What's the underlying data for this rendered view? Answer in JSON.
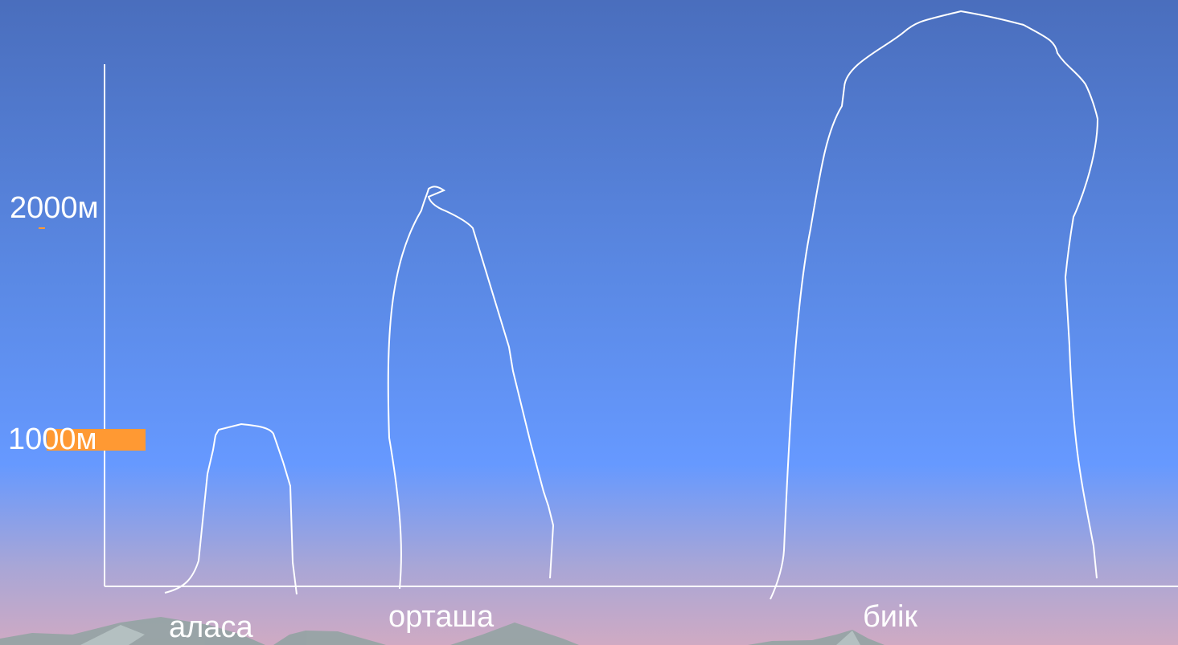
{
  "y_labels": {
    "m1000": "1000м",
    "m2000": "2000м"
  },
  "peaks": [
    {
      "id": "alasa",
      "label": "аласа",
      "height_m": 1050
    },
    {
      "id": "ortasha",
      "label": "орташа",
      "height_m": 2050
    },
    {
      "id": "biik",
      "label": "биік",
      "height_m": 2900
    }
  ],
  "colors": {
    "sky_top": "#4a6fbf",
    "sky_mid": "#6699ff",
    "sky_bottom": "#c9a9c6",
    "outline": "#ffffff",
    "marker": "#ff9933",
    "mountain_fill": "#8f9f9f"
  }
}
